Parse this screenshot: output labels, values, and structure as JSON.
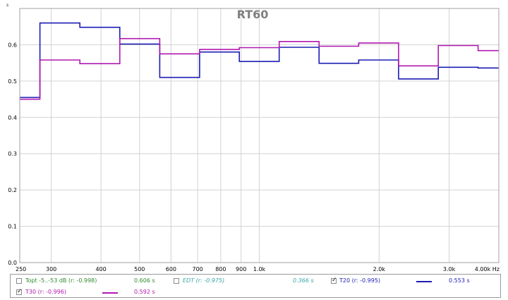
{
  "chart_data": {
    "type": "line",
    "title": "RT60",
    "ylabel_unit": "s",
    "xlabel_unit": "Hz",
    "x_scale": "log",
    "xlim": [
      250,
      4000
    ],
    "ylim": [
      0,
      0.7
    ],
    "yticks": [
      0.0,
      0.1,
      0.2,
      0.3,
      0.4,
      0.5,
      0.6
    ],
    "ytick_labels": [
      "0.0",
      "0.1",
      "0.2",
      "0.3",
      "0.4",
      "0.5",
      "0.6"
    ],
    "xticks": [
      250,
      300,
      400,
      500,
      600,
      700,
      800,
      900,
      1000,
      2000,
      3000,
      4000
    ],
    "xtick_labels": [
      "250",
      "300",
      "400",
      "500",
      "600",
      "700",
      "800",
      "900",
      "1.0k",
      "2.0k",
      "3.0k",
      "4.00k Hz"
    ],
    "grid": true,
    "bands": [
      {
        "from": 250,
        "to": 281
      },
      {
        "from": 281,
        "to": 354
      },
      {
        "from": 354,
        "to": 446
      },
      {
        "from": 446,
        "to": 562
      },
      {
        "from": 562,
        "to": 708
      },
      {
        "from": 708,
        "to": 891
      },
      {
        "from": 891,
        "to": 1122
      },
      {
        "from": 1122,
        "to": 1413
      },
      {
        "from": 1413,
        "to": 1778
      },
      {
        "from": 1778,
        "to": 2239
      },
      {
        "from": 2239,
        "to": 2818
      },
      {
        "from": 2818,
        "to": 3548
      },
      {
        "from": 3548,
        "to": 4000
      }
    ],
    "series": [
      {
        "name": "T20 (r: -0.995)",
        "color": "#1c1cb4",
        "values": [
          0.455,
          0.66,
          0.648,
          0.602,
          0.51,
          0.58,
          0.554,
          0.593,
          0.549,
          0.558,
          0.506,
          0.538,
          0.536
        ]
      },
      {
        "name": "T30 (r: -0.996)",
        "color": "#b019b0",
        "values": [
          0.45,
          0.558,
          0.548,
          0.617,
          0.575,
          0.587,
          0.592,
          0.609,
          0.596,
          0.605,
          0.542,
          0.598,
          0.584
        ]
      }
    ]
  },
  "legend": {
    "topt": {
      "label": "Topt -5..-53 dB (r: -0.998)",
      "value": "0.606 s",
      "checked": false,
      "color": "#2e8b2e"
    },
    "edt": {
      "label": "EDT (r: -0.975)",
      "value": "0.366 s",
      "checked": false,
      "color": "#3aa6a6"
    },
    "t20": {
      "label": "T20 (r: -0.995)",
      "value": "0.553 s",
      "checked": true,
      "color": "#1c1cb4"
    },
    "t30": {
      "label": "T30 (r: -0.996)",
      "value": "0.592 s",
      "checked": true,
      "color": "#b019b0"
    }
  }
}
